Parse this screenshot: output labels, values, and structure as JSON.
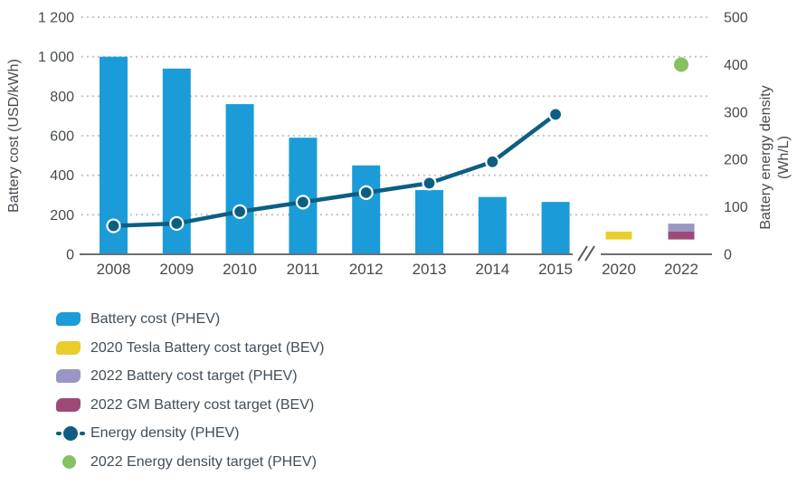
{
  "chart_data": {
    "type": "combo-bar-line",
    "categories": [
      "2008",
      "2009",
      "2010",
      "2011",
      "2012",
      "2013",
      "2014",
      "2015",
      "2020",
      "2022"
    ],
    "axis_break_after": "2015",
    "grid": "dotted-horizontal",
    "left_axis": {
      "label": "Battery cost (USD/kWh)",
      "tick_values": [
        0,
        200,
        400,
        600,
        800,
        1000,
        1200
      ],
      "tick_labels": [
        "0",
        "200",
        "400",
        "600",
        "800",
        "1 000",
        "1 200"
      ],
      "range": [
        0,
        1200
      ]
    },
    "right_axis": {
      "label_line1": "Battery energy density",
      "label_line2": "(Wh/L)",
      "tick_values": [
        0,
        100,
        200,
        300,
        400,
        500
      ],
      "tick_labels": [
        "0",
        "100",
        "200",
        "300",
        "400",
        "500"
      ],
      "range": [
        0,
        500
      ]
    },
    "bars": {
      "name": "Battery cost (PHEV)",
      "axis": "left",
      "color": "#1b9cd9",
      "categories": [
        "2008",
        "2009",
        "2010",
        "2011",
        "2012",
        "2013",
        "2014",
        "2015"
      ],
      "values": [
        1000,
        940,
        760,
        590,
        450,
        325,
        290,
        265
      ]
    },
    "line": {
      "name": "Energy density (PHEV)",
      "axis": "right",
      "color": "#0d5e83",
      "categories": [
        "2008",
        "2009",
        "2010",
        "2011",
        "2012",
        "2013",
        "2014",
        "2015"
      ],
      "values": [
        60,
        65,
        90,
        110,
        130,
        150,
        195,
        295
      ]
    },
    "cost_targets": [
      {
        "name": "2020 Tesla Battery cost target (BEV)",
        "category": "2020",
        "axis": "left",
        "color": "#e9cd2d",
        "value_range": [
          75,
          115
        ]
      },
      {
        "name": "2022 Battery cost target (PHEV)",
        "category": "2022",
        "axis": "left",
        "color": "#9a96c3",
        "value_range": [
          115,
          155
        ]
      },
      {
        "name": "2022 GM Battery cost target (BEV)",
        "category": "2022",
        "axis": "left",
        "color": "#9d4b76",
        "value_range": [
          75,
          115
        ]
      }
    ],
    "density_target": {
      "name": "2022 Energy density target (PHEV)",
      "category": "2022",
      "axis": "right",
      "color": "#85c161",
      "value": 400
    }
  },
  "legend": {
    "items": [
      {
        "label": "Battery cost (PHEV)",
        "swatch": "bar",
        "color": "#1b9cd9"
      },
      {
        "label": "2020 Tesla Battery cost target (BEV)",
        "swatch": "bar",
        "color": "#e9cd2d"
      },
      {
        "label": "2022 Battery cost target (PHEV)",
        "swatch": "bar",
        "color": "#9a96c3"
      },
      {
        "label": "2022 GM Battery cost target (BEV)",
        "swatch": "bar",
        "color": "#9d4b76"
      },
      {
        "label": "Energy density (PHEV)",
        "swatch": "line-dot",
        "color": "#0d5e83"
      },
      {
        "label": "2022 Energy density target (PHEV)",
        "swatch": "dot",
        "color": "#85c161"
      }
    ]
  },
  "colors": {
    "gridline": "#b9b9b9",
    "axis_line": "#6e6f71",
    "tick_text": "#454b50",
    "point_ring": "#ffffff"
  }
}
